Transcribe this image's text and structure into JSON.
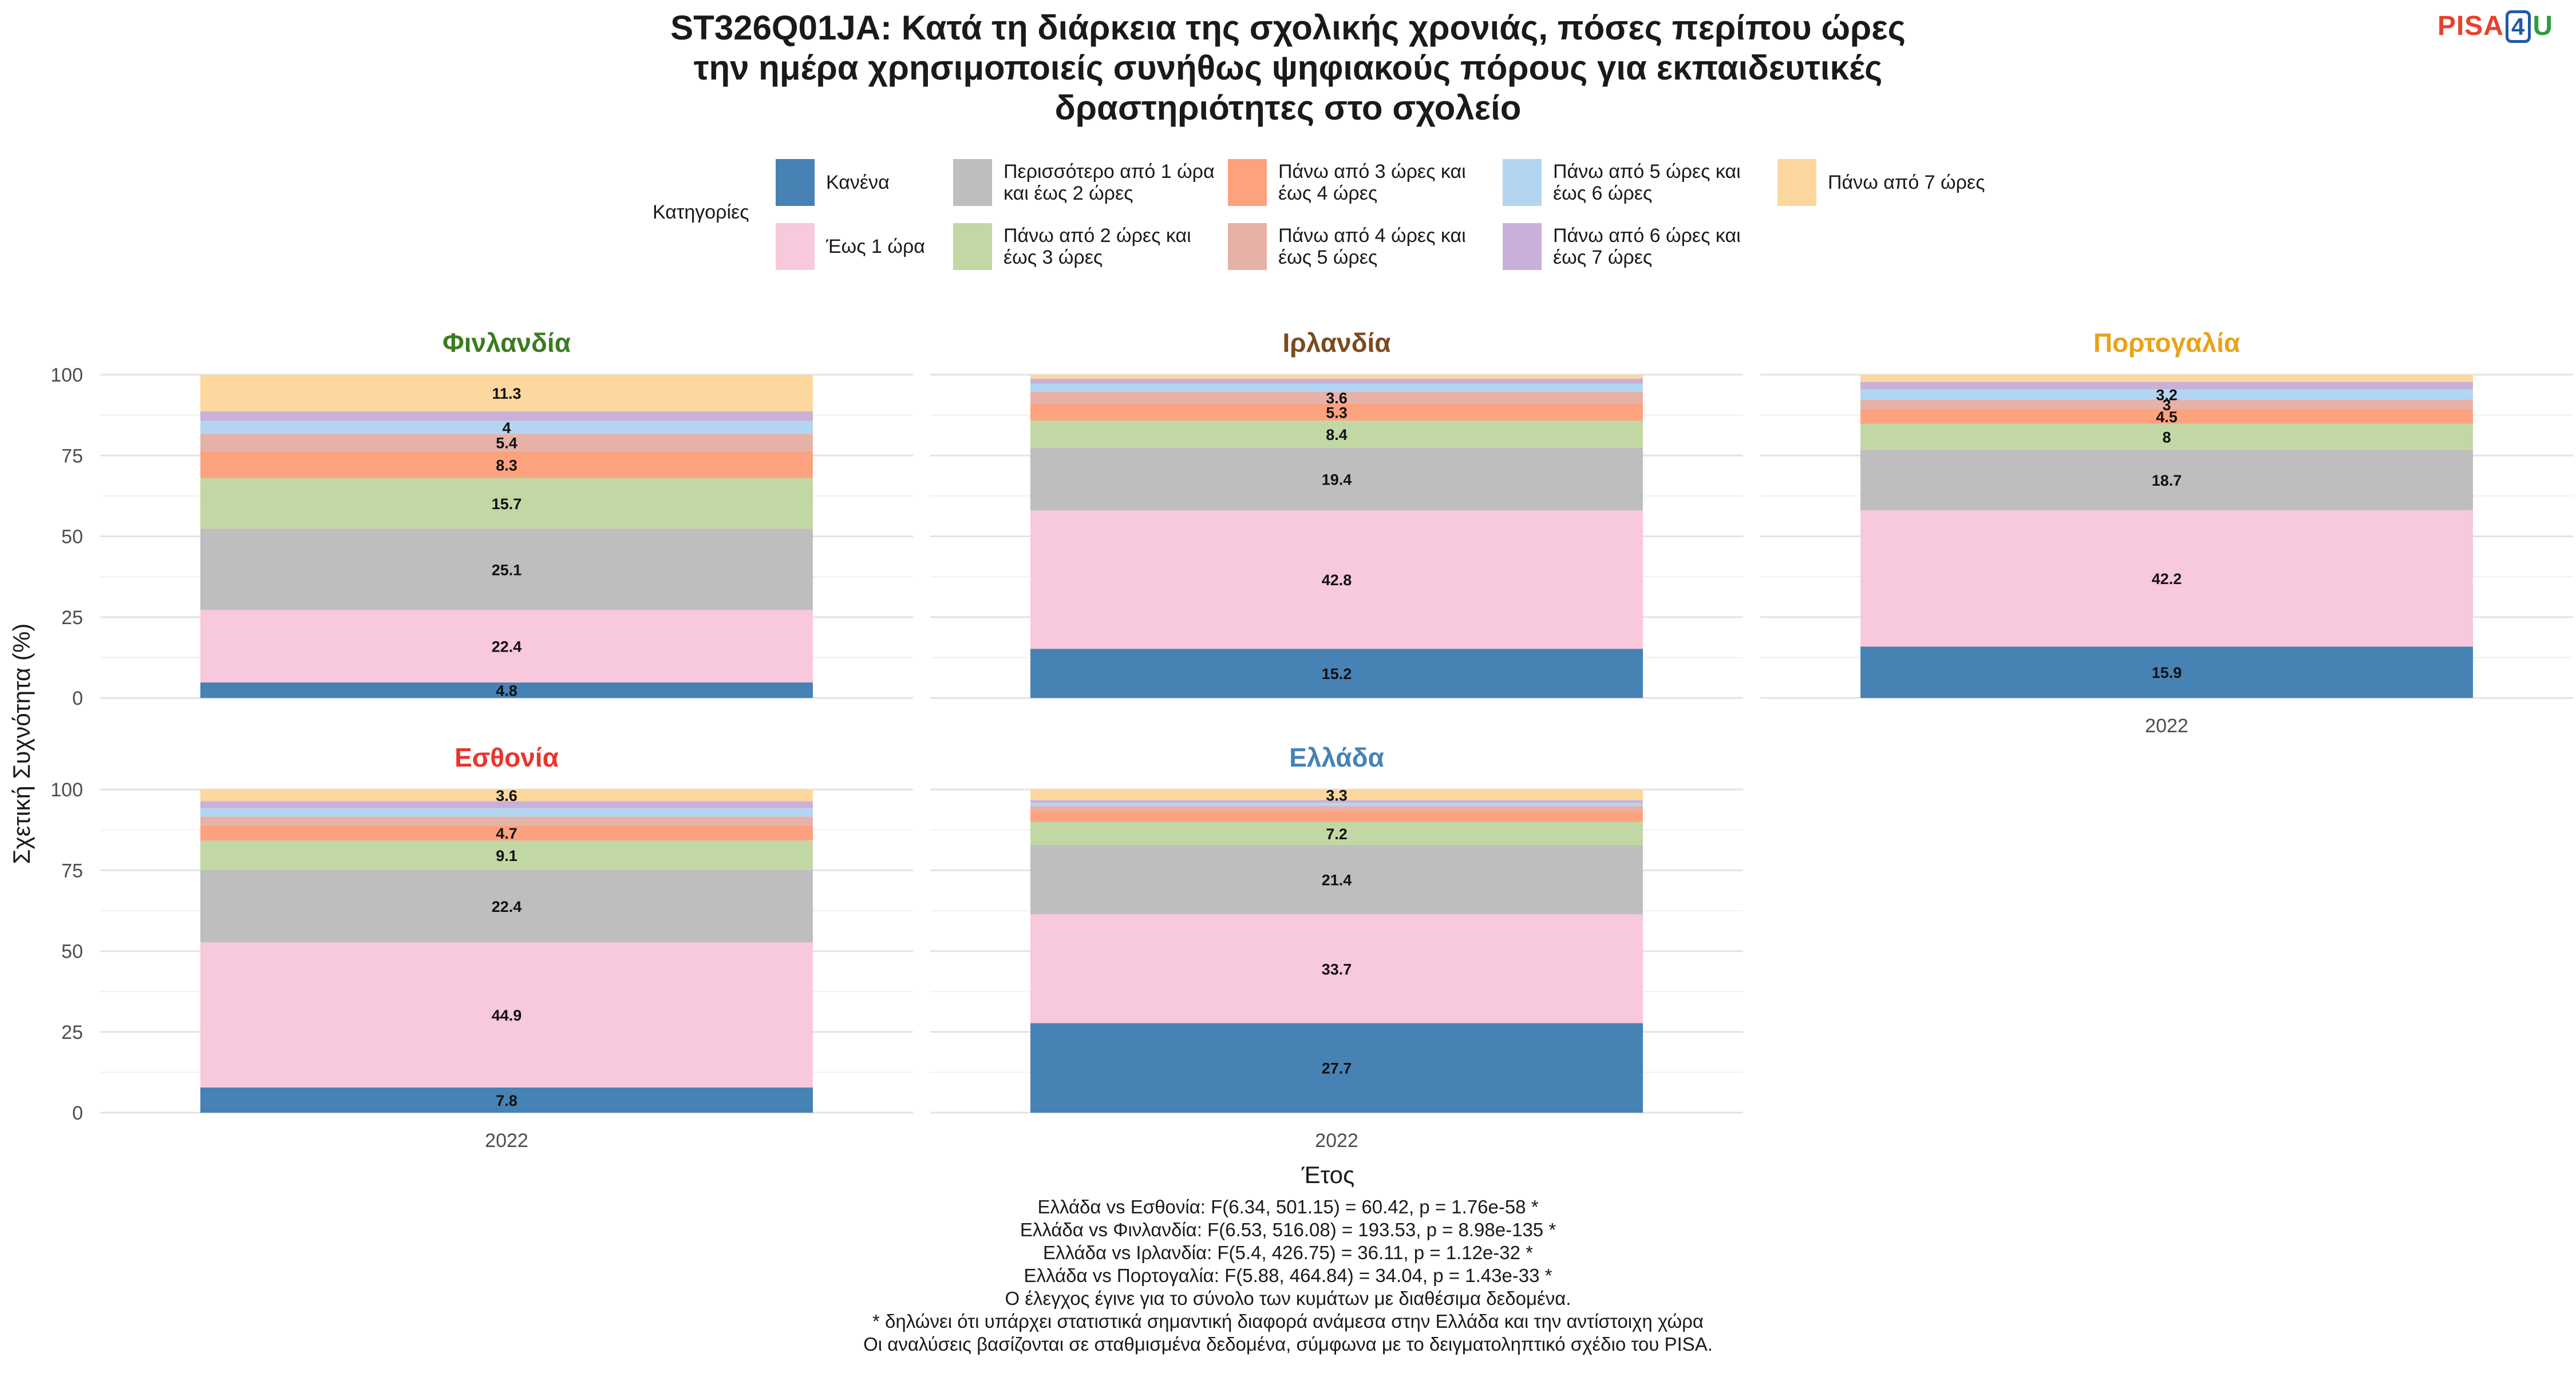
{
  "title_lines": [
    "ST326Q01JA: Κατά τη διάρκεια της σχολικής χρονιάς, πόσες περίπου ώρες",
    "την ημέρα χρησιμοποιείς συνήθως ψηφιακούς πόρους για εκπαιδευτικές",
    "δραστηριότητες στο σχολείο"
  ],
  "logo": {
    "part1": "PISA",
    "part2": "4",
    "part3": "U"
  },
  "legend": {
    "title": "Κατηγορίες",
    "items": [
      {
        "label": "Κανένα",
        "color": "#4682b4"
      },
      {
        "label": "Έως 1 ώρα",
        "color": "#f8c8dc"
      },
      {
        "label": "Περισσότερο από 1 ώρα και έως 2 ώρες",
        "color": "#bebebe"
      },
      {
        "label": "Πάνω από 2 ώρες και έως 3 ώρες",
        "color": "#c2d8a4"
      },
      {
        "label": "Πάνω από 3 ώρες και έως 4 ώρες",
        "color": "#fca27e"
      },
      {
        "label": "Πάνω από 4 ώρες και έως 5 ώρες",
        "color": "#e6b2a8"
      },
      {
        "label": "Πάνω από 5 ώρες και έως 6 ώρες",
        "color": "#b2d6f2"
      },
      {
        "label": "Πάνω από 6 ώρες και έως 7 ώρες",
        "color": "#c8b0d8"
      },
      {
        "label": "Πάνω από 7 ώρες",
        "color": "#fcd79e"
      }
    ]
  },
  "chart_data": {
    "type": "bar",
    "stacked": true,
    "xlabel": "Έτος",
    "ylabel": "Σχετική Συχνότητα (%)",
    "ylim": [
      0,
      100
    ],
    "yticks": [
      0,
      25,
      50,
      75,
      100
    ],
    "categories": [
      "2022"
    ],
    "panels": [
      {
        "country": "Φινλανδία",
        "color": "#3d7a22",
        "year": "2022",
        "values": [
          4.8,
          22.4,
          25.1,
          15.7,
          8.3,
          5.4,
          4,
          3,
          11.3
        ],
        "labels": [
          "4.8",
          "22.4",
          "25.1",
          "15.7",
          "8.3",
          "5.4",
          "4",
          "",
          "11.3"
        ]
      },
      {
        "country": "Ιρλανδία",
        "color": "#7a4a1e",
        "year": "2022",
        "values": [
          15.2,
          42.8,
          19.4,
          8.4,
          5.3,
          3.6,
          2.5,
          1.6,
          1.2
        ],
        "labels": [
          "15.2",
          "42.8",
          "19.4",
          "8.4",
          "5.3",
          "3.6",
          "",
          "",
          ""
        ]
      },
      {
        "country": "Πορτογαλία",
        "color": "#e8a21a",
        "year": "2022",
        "values": [
          15.9,
          42.2,
          18.7,
          8,
          4.5,
          3,
          3.2,
          2.3,
          2.2
        ],
        "labels": [
          "15.9",
          "42.2",
          "18.7",
          "8",
          "4.5",
          "3",
          "3.2",
          "",
          ""
        ]
      },
      {
        "country": "Εσθονία",
        "color": "#e8352c",
        "year": "2022",
        "values": [
          7.8,
          44.9,
          22.4,
          9.1,
          4.7,
          2.7,
          2.6,
          2.2,
          3.6
        ],
        "labels": [
          "7.8",
          "44.9",
          "22.4",
          "9.1",
          "4.7",
          "",
          "",
          "",
          "3.6"
        ]
      },
      {
        "country": "Ελλάδα",
        "color": "#4682b4",
        "year": "2022",
        "values": [
          27.7,
          33.7,
          21.4,
          7.2,
          3.4,
          1.5,
          1.0,
          0.8,
          3.3
        ],
        "labels": [
          "27.7",
          "33.7",
          "21.4",
          "7.2",
          "",
          "",
          "",
          "",
          "3.3"
        ]
      }
    ]
  },
  "footnotes": [
    "Ελλάδα vs Εσθονία: F(6.34, 501.15) = 60.42, p = 1.76e-58 *",
    "Ελλάδα vs Φινλανδία: F(6.53, 516.08) = 193.53, p = 8.98e-135 *",
    "Ελλάδα vs Ιρλανδία: F(5.4, 426.75) = 36.11, p = 1.12e-32 *",
    "Ελλάδα vs Πορτογαλία: F(5.88, 464.84) = 34.04, p = 1.43e-33 *",
    "Ο έλεγχος έγινε για το σύνολο των κυμάτων με διαθέσιμα δεδομένα.",
    "* δηλώνει ότι υπάρχει στατιστικά σημαντική διαφορά ανάμεσα στην Ελλάδα και την αντίστοιχη χώρα",
    "Οι αναλύσεις βασίζονται σε σταθμισμένα δεδομένα, σύμφωνα με το δειγματοληπτικό σχέδιο του PISA."
  ]
}
